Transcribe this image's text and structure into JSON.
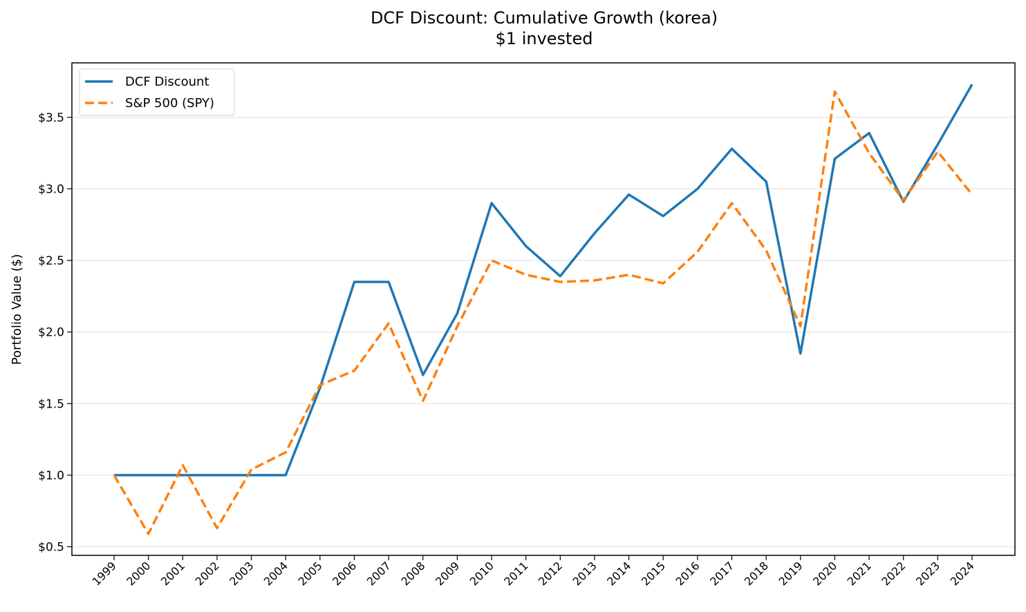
{
  "chart_data": {
    "type": "line",
    "title": "DCF Discount: Cumulative Growth (korea)",
    "subtitle": "$1 invested",
    "xlabel": "",
    "ylabel": "Portfolio Value ($)",
    "categories": [
      "1999",
      "2000",
      "2001",
      "2002",
      "2003",
      "2004",
      "2005",
      "2006",
      "2007",
      "2008",
      "2009",
      "2010",
      "2011",
      "2012",
      "2013",
      "2014",
      "2015",
      "2016",
      "2017",
      "2018",
      "2019",
      "2020",
      "2021",
      "2022",
      "2023",
      "2024"
    ],
    "series": [
      {
        "name": "DCF Discount",
        "color": "#1f77b4",
        "style": "solid",
        "values": [
          1.0,
          1.0,
          1.0,
          1.0,
          1.0,
          1.0,
          1.61,
          2.35,
          2.35,
          1.7,
          2.13,
          2.9,
          2.6,
          2.39,
          2.69,
          2.96,
          2.81,
          3.0,
          3.28,
          3.05,
          1.85,
          3.21,
          3.39,
          2.91,
          3.31,
          3.73
        ]
      },
      {
        "name": "S&P 500 (SPY)",
        "color": "#ff7f0e",
        "style": "dashed",
        "values": [
          1.0,
          0.59,
          1.07,
          0.63,
          1.04,
          1.16,
          1.63,
          1.73,
          2.06,
          1.52,
          2.04,
          2.5,
          2.4,
          2.35,
          2.36,
          2.4,
          2.34,
          2.56,
          2.9,
          2.57,
          2.04,
          3.68,
          3.25,
          2.92,
          3.26,
          2.96
        ]
      }
    ],
    "yticks": [
      0.5,
      1.0,
      1.5,
      2.0,
      2.5,
      3.0,
      3.5
    ],
    "ytick_labels": [
      "$0.5",
      "$1.0",
      "$1.5",
      "$2.0",
      "$2.5",
      "$3.0",
      "$3.5"
    ],
    "ylim": [
      0.44,
      3.88
    ],
    "grid": "y",
    "legend": "top-left"
  }
}
